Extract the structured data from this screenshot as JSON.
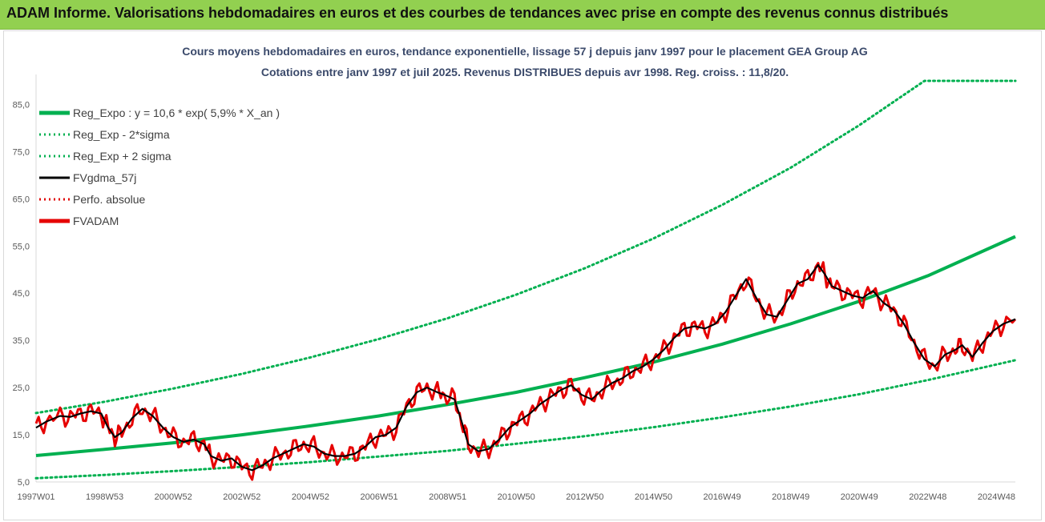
{
  "header": {
    "title": "ADAM Informe. Valorisations hebdomadaires en euros et des courbes de tendances avec prise en compte des revenus connus distribués",
    "background": "#92d050"
  },
  "chart_data": {
    "type": "line",
    "title_lines": [
      "Cours moyens hebdomadaires en euros, tendance exponentielle, lissage 57 j depuis janv 1997  pour le placement GEA Group AG",
      "Cotations entre janv 1997 et juil 2025. Revenus DISTRIBUES depuis avr 1998. Reg. croiss. : 11,8/20."
    ],
    "y_ticks": [
      "5,0",
      "15,0",
      "25,0",
      "35,0",
      "45,0",
      "55,0",
      "65,0",
      "75,0",
      "85,0"
    ],
    "ylim": [
      5,
      90
    ],
    "x_ticks": [
      {
        "label": "1997W01",
        "t": 1997.0
      },
      {
        "label": "1998W53",
        "t": 1999.0
      },
      {
        "label": "2000W52",
        "t": 2001.0
      },
      {
        "label": "2002W52",
        "t": 2003.0
      },
      {
        "label": "2004W52",
        "t": 2005.0
      },
      {
        "label": "2006W51",
        "t": 2007.0
      },
      {
        "label": "2008W51",
        "t": 2009.0
      },
      {
        "label": "2010W50",
        "t": 2011.0
      },
      {
        "label": "2012W50",
        "t": 2013.0
      },
      {
        "label": "2014W50",
        "t": 2015.0
      },
      {
        "label": "2016W49",
        "t": 2017.0
      },
      {
        "label": "2018W49",
        "t": 2019.0
      },
      {
        "label": "2020W49",
        "t": 2021.0
      },
      {
        "label": "2022W48",
        "t": 2023.0
      },
      {
        "label": "2024W48",
        "t": 2025.0
      }
    ],
    "xlim": [
      1997.0,
      2025.55
    ],
    "grid": false,
    "legend_position": "top-left",
    "series": [
      {
        "name": "Reg_Expo : y = 10,6 * exp( 5,9% *  X_an )",
        "color": "#00b050",
        "style": "solid-thick",
        "points": [
          [
            1997.0,
            10.6
          ],
          [
            1999.0,
            11.9
          ],
          [
            2001.0,
            13.3
          ],
          [
            2003.0,
            15.0
          ],
          [
            2005.0,
            16.9
          ],
          [
            2007.0,
            19.0
          ],
          [
            2009.0,
            21.4
          ],
          [
            2011.0,
            24.0
          ],
          [
            2013.0,
            27.1
          ],
          [
            2015.0,
            30.4
          ],
          [
            2017.0,
            34.2
          ],
          [
            2019.0,
            38.5
          ],
          [
            2021.0,
            43.3
          ],
          [
            2023.0,
            48.7
          ],
          [
            2025.55,
            57.0
          ]
        ]
      },
      {
        "name": "Reg_Exp - 2*sigma",
        "color": "#00b050",
        "style": "dotted",
        "points": [
          [
            1997.0,
            5.8
          ],
          [
            1999.0,
            6.5
          ],
          [
            2001.0,
            7.3
          ],
          [
            2003.0,
            8.2
          ],
          [
            2005.0,
            9.2
          ],
          [
            2007.0,
            10.4
          ],
          [
            2009.0,
            11.6
          ],
          [
            2011.0,
            13.1
          ],
          [
            2013.0,
            14.7
          ],
          [
            2015.0,
            16.6
          ],
          [
            2017.0,
            18.7
          ],
          [
            2019.0,
            21.0
          ],
          [
            2021.0,
            23.6
          ],
          [
            2023.0,
            26.6
          ],
          [
            2025.55,
            30.8
          ]
        ]
      },
      {
        "name": "Reg_Exp + 2 sigma",
        "color": "#00b050",
        "style": "dotted",
        "points": [
          [
            1997.0,
            19.6
          ],
          [
            1999.0,
            22.0
          ],
          [
            2001.0,
            24.8
          ],
          [
            2003.0,
            27.9
          ],
          [
            2005.0,
            31.4
          ],
          [
            2007.0,
            35.3
          ],
          [
            2009.0,
            39.7
          ],
          [
            2011.0,
            44.7
          ],
          [
            2013.0,
            50.3
          ],
          [
            2015.0,
            56.6
          ],
          [
            2017.0,
            63.7
          ],
          [
            2019.0,
            71.6
          ],
          [
            2021.0,
            80.6
          ],
          [
            2022.9,
            90.0
          ],
          [
            2025.55,
            90.0
          ]
        ]
      },
      {
        "name": "FVgdma_57j",
        "color": "#000000",
        "style": "solid",
        "points": [
          [
            1997.0,
            16.5
          ],
          [
            1997.3,
            17.8
          ],
          [
            1997.7,
            19.0
          ],
          [
            1998.0,
            18.8
          ],
          [
            1998.3,
            19.5
          ],
          [
            1998.6,
            20.0
          ],
          [
            1998.9,
            19.5
          ],
          [
            1999.1,
            16.5
          ],
          [
            1999.3,
            14.5
          ],
          [
            1999.5,
            15.5
          ],
          [
            1999.8,
            18.5
          ],
          [
            2000.1,
            20.5
          ],
          [
            2000.4,
            19.0
          ],
          [
            2000.7,
            16.5
          ],
          [
            2001.0,
            14.5
          ],
          [
            2001.3,
            13.5
          ],
          [
            2001.6,
            14.0
          ],
          [
            2001.9,
            13.0
          ],
          [
            2002.1,
            10.5
          ],
          [
            2002.4,
            9.5
          ],
          [
            2002.7,
            10.0
          ],
          [
            2003.0,
            8.2
          ],
          [
            2003.3,
            7.5
          ],
          [
            2003.6,
            8.5
          ],
          [
            2003.9,
            10.0
          ],
          [
            2004.2,
            11.0
          ],
          [
            2004.5,
            12.0
          ],
          [
            2004.8,
            13.0
          ],
          [
            2005.1,
            12.5
          ],
          [
            2005.4,
            11.0
          ],
          [
            2005.7,
            10.5
          ],
          [
            2006.0,
            10.5
          ],
          [
            2006.3,
            11.0
          ],
          [
            2006.6,
            12.5
          ],
          [
            2006.9,
            14.5
          ],
          [
            2007.2,
            15.0
          ],
          [
            2007.5,
            16.5
          ],
          [
            2007.8,
            21.0
          ],
          [
            2008.1,
            24.0
          ],
          [
            2008.4,
            25.0
          ],
          [
            2008.7,
            24.0
          ],
          [
            2008.9,
            23.5
          ],
          [
            2009.2,
            22.5
          ],
          [
            2009.4,
            18.0
          ],
          [
            2009.6,
            13.0
          ],
          [
            2009.9,
            11.5
          ],
          [
            2010.2,
            12.0
          ],
          [
            2010.5,
            14.0
          ],
          [
            2010.8,
            16.5
          ],
          [
            2011.1,
            18.0
          ],
          [
            2011.4,
            19.5
          ],
          [
            2011.7,
            21.5
          ],
          [
            2012.0,
            23.0
          ],
          [
            2012.3,
            24.5
          ],
          [
            2012.6,
            25.5
          ],
          [
            2012.9,
            23.5
          ],
          [
            2013.2,
            22.5
          ],
          [
            2013.5,
            24.5
          ],
          [
            2013.8,
            26.0
          ],
          [
            2014.1,
            27.0
          ],
          [
            2014.4,
            28.5
          ],
          [
            2014.7,
            29.5
          ],
          [
            2015.0,
            31.0
          ],
          [
            2015.3,
            33.0
          ],
          [
            2015.6,
            35.5
          ],
          [
            2015.9,
            37.5
          ],
          [
            2016.2,
            38.0
          ],
          [
            2016.5,
            37.5
          ],
          [
            2016.8,
            38.5
          ],
          [
            2017.1,
            41.0
          ],
          [
            2017.4,
            44.5
          ],
          [
            2017.7,
            48.0
          ],
          [
            2018.0,
            44.0
          ],
          [
            2018.3,
            40.5
          ],
          [
            2018.6,
            40.0
          ],
          [
            2018.9,
            43.5
          ],
          [
            2019.2,
            47.0
          ],
          [
            2019.5,
            48.0
          ],
          [
            2019.8,
            51.0
          ],
          [
            2020.0,
            49.0
          ],
          [
            2020.2,
            46.5
          ],
          [
            2020.5,
            45.5
          ],
          [
            2020.8,
            44.5
          ],
          [
            2021.1,
            44.0
          ],
          [
            2021.4,
            45.5
          ],
          [
            2021.7,
            43.0
          ],
          [
            2022.0,
            41.5
          ],
          [
            2022.3,
            38.5
          ],
          [
            2022.6,
            34.5
          ],
          [
            2022.9,
            31.0
          ],
          [
            2023.2,
            29.5
          ],
          [
            2023.5,
            32.0
          ],
          [
            2023.8,
            33.0
          ],
          [
            2024.0,
            34.0
          ],
          [
            2024.3,
            31.5
          ],
          [
            2024.6,
            34.5
          ],
          [
            2024.9,
            37.0
          ],
          [
            2025.2,
            38.5
          ],
          [
            2025.55,
            39.5
          ]
        ]
      },
      {
        "name": "Perfo. absolue",
        "color": "#e00000",
        "style": "dotted",
        "points": []
      },
      {
        "name": "FVADAM",
        "color": "#e60000",
        "style": "solid-thick",
        "points": []
      }
    ]
  }
}
